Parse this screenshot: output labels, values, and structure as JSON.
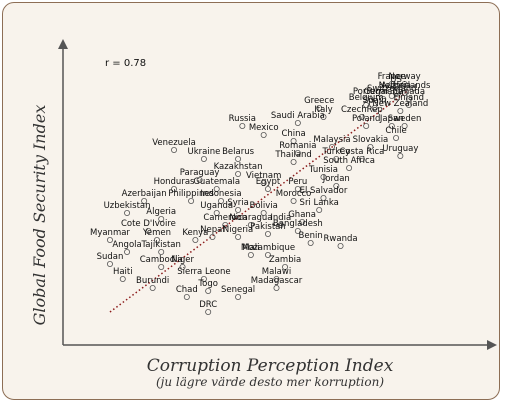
{
  "chart_data": {
    "type": "scatter",
    "annotation": "r = 0.78",
    "y_label": "Global Food Security Index",
    "x_label": "Corruption Perception Index",
    "x_sublabel": "(ju lägre värde desto mer korruption)",
    "xlim": [
      0,
      100
    ],
    "ylim": [
      0,
      100
    ],
    "color": "#555555",
    "trendline": {
      "color": "#8b1a1a",
      "x": [
        11,
        81
      ],
      "y": [
        11,
        85
      ]
    },
    "point_labels": [
      "France",
      "US",
      "Norway",
      "Austria",
      "Netherlands",
      "Switzerland",
      "Portugal",
      "Canada",
      "Germany",
      "Belgium",
      "Finland",
      "Greece",
      "Spain",
      "Italy",
      "New Zealand",
      "CzechRep",
      "Russia",
      "Saudi Arabia",
      "Poland",
      "Japan",
      "Sweden",
      "Mexico",
      "China",
      "Chile",
      "Venezuela",
      "Malaysia",
      "Slovakia",
      "Romania",
      "Belarus",
      "Ukraine",
      "Costa Rica",
      "Turkey",
      "Uruguay",
      "Thailand",
      "South Africa",
      "Kazakhstan",
      "Tunisia",
      "Paraguay",
      "Vietnam",
      "Jordan",
      "Peru",
      "Egypt",
      "Honduras",
      "Guatemala",
      "El Salvador",
      "Morocco",
      "Philippines",
      "Indonesia",
      "Azerbaijan",
      "Sri Lanka",
      "Uzbekistan",
      "Uganda",
      "Syria",
      "Bolivia",
      "Algeria",
      "Cameroon",
      "Nicaragua",
      "India",
      "Ghana",
      "Cote D'Ivoire",
      "Nepal",
      "Nigeria",
      "Pakistan",
      "Bangladesh",
      "Myanmar",
      "Yemen",
      "Kenya",
      "Benin",
      "Rwanda",
      "Angola",
      "Tajikistan",
      "Mali",
      "Mozambique",
      "Sudan",
      "Cambodia",
      "Niger",
      "Zambia",
      "Malawi",
      "Haiti",
      "Sierra Leone",
      "Madagascar",
      "Burundi",
      "Togo",
      "Chad",
      "Senegal",
      "DRC"
    ],
    "x": [
      77,
      78,
      80,
      78,
      80,
      77,
      72,
      81,
      75,
      71,
      81,
      60,
      73,
      61,
      79,
      70,
      42,
      55,
      71,
      77,
      80,
      47,
      54,
      78,
      26,
      63,
      72,
      55,
      41,
      33,
      70,
      64,
      79,
      54,
      67,
      41,
      61,
      32,
      47,
      64,
      55,
      48,
      26,
      36,
      61,
      54,
      30,
      37,
      19,
      60,
      15,
      36,
      41,
      47,
      23,
      38,
      44,
      51,
      56,
      20,
      35,
      41,
      48,
      55,
      11,
      22,
      31,
      58,
      65,
      15,
      23,
      44,
      48,
      11,
      23,
      28,
      52,
      50,
      14,
      33,
      50,
      21,
      34,
      29,
      41,
      34
    ],
    "values": [
      87,
      86,
      87,
      84,
      84,
      83,
      82,
      82,
      82,
      80,
      80,
      79,
      79,
      76,
      78,
      76,
      73,
      74,
      73,
      73,
      73,
      70,
      68,
      69,
      65,
      66,
      66,
      64,
      62,
      62,
      62,
      62,
      63,
      61,
      59,
      57,
      56,
      55,
      54,
      53,
      52,
      52,
      52,
      52,
      49,
      48,
      48,
      48,
      48,
      45,
      44,
      44,
      45,
      44,
      42,
      40,
      40,
      40,
      41,
      38,
      36,
      36,
      37,
      38,
      35,
      35,
      35,
      34,
      33,
      31,
      31,
      30,
      30,
      27,
      26,
      26,
      26,
      22,
      22,
      22,
      19,
      19,
      18,
      16,
      16,
      11
    ]
  }
}
